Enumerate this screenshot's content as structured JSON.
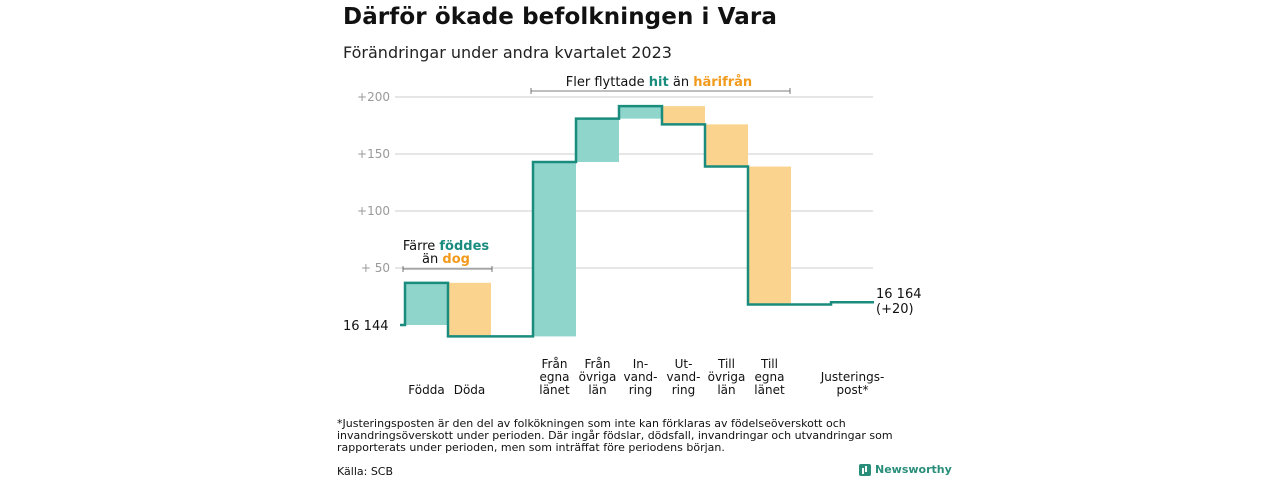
{
  "title": "Därför ökade befolkningen i Vara",
  "subtitle": "Förändringar under andra kvartalet 2023",
  "chart_data": {
    "type": "bar",
    "subtype": "waterfall",
    "start_label": "16  144",
    "start_value": 16144,
    "end_label_line1": "16 164",
    "end_label_line2": "(+20)",
    "end_value": 16164,
    "y_ticks": [
      "+200",
      "+150",
      "+100",
      "+  50"
    ],
    "y_tick_values": [
      200,
      150,
      100,
      50
    ],
    "ylim": [
      -10,
      205
    ],
    "steps": [
      {
        "label": [
          "Födda"
        ],
        "from": 0,
        "to": 37,
        "kind": "in"
      },
      {
        "label": [
          "Döda"
        ],
        "from": 37,
        "to": -10,
        "kind": "out"
      },
      {
        "label": [
          "Från",
          "egna",
          "länet"
        ],
        "from": -10,
        "to": 143,
        "kind": "in"
      },
      {
        "label": [
          "Från",
          "övriga",
          "län"
        ],
        "from": 143,
        "to": 181,
        "kind": "in"
      },
      {
        "label": [
          "In-",
          "vand-",
          "ring"
        ],
        "from": 181,
        "to": 192,
        "kind": "in"
      },
      {
        "label": [
          "Ut-",
          "vand-",
          "ring"
        ],
        "from": 192,
        "to": 176,
        "kind": "out"
      },
      {
        "label": [
          "Till",
          "övriga",
          "län"
        ],
        "from": 176,
        "to": 139,
        "kind": "out"
      },
      {
        "label": [
          "Till",
          "egna",
          "länet"
        ],
        "from": 139,
        "to": 18,
        "kind": "out"
      },
      {
        "label": [
          "Justerings-",
          "post*"
        ],
        "from": 18,
        "to": 20,
        "kind": "adj"
      }
    ],
    "annotations": {
      "births": {
        "line1": "Färre ",
        "line1_hi": "föddes",
        "line2": "än ",
        "line2_hi": "dog"
      },
      "migration": {
        "pre": "Fler flyttade ",
        "hi1": "hit",
        "mid": " än ",
        "hi2": "härifrån"
      }
    },
    "colors": {
      "in": "#8fd5cc",
      "out": "#fad48f",
      "line": "#1a8c7e",
      "in_text": "#1a8c7e",
      "out_text": "#f19a1c",
      "grid": "#cccccc",
      "tick": "#9a9a9a"
    }
  },
  "footnote": "*Justeringsposten är den del av folkökningen som inte kan förklaras av födelseöverskott och invandringsöverskott under perioden. Där ingår födslar, dödsfall, invandringar och utvandringar som rapporterats under perioden, men som inträffat före periodens början.",
  "source": "Källa: SCB",
  "brand": "Newsworthy"
}
